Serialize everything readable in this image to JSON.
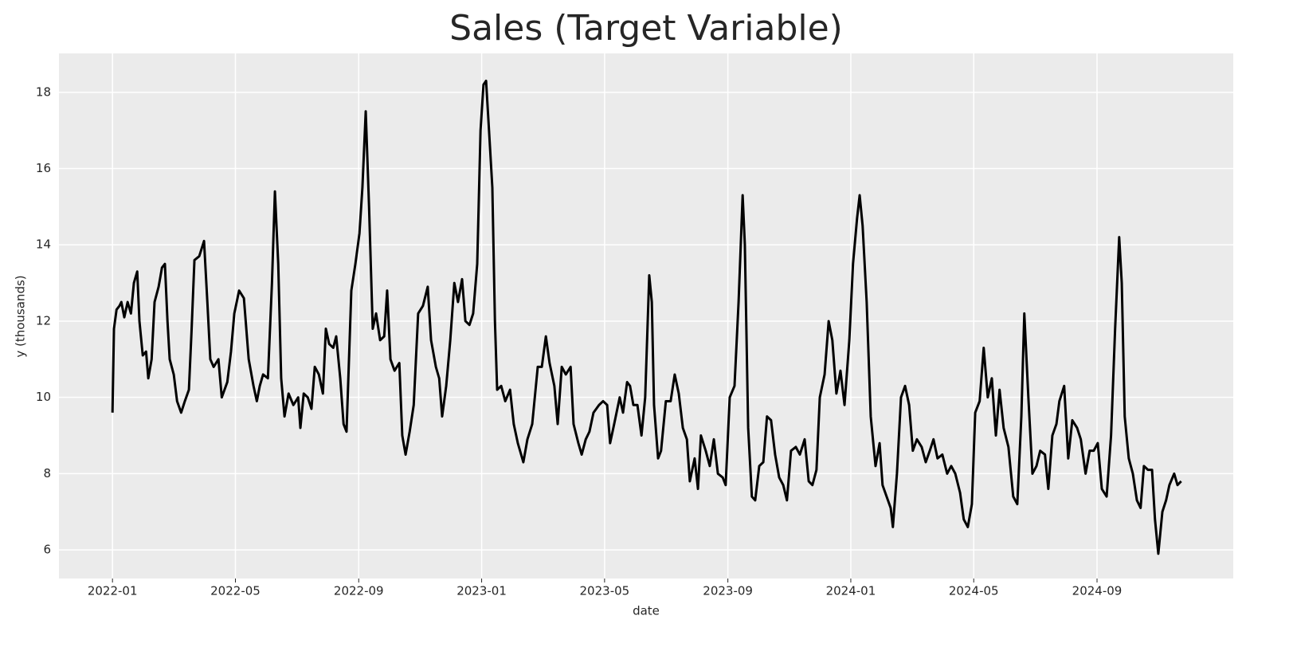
{
  "chart_data": {
    "type": "line",
    "title": "Sales (Target Variable)",
    "x_label": "date",
    "y_label": "y (thousands)",
    "xlim": [
      2021.855,
      2025.036
    ],
    "ylim": [
      5.25,
      19.02
    ],
    "xticks": [
      {
        "value": 2022,
        "label": "2022-01"
      },
      {
        "value": 2022.333,
        "label": "2022-05"
      },
      {
        "value": 2022.667,
        "label": "2022-09"
      },
      {
        "value": 2023,
        "label": "2023-01"
      },
      {
        "value": 2023.333,
        "label": "2023-05"
      },
      {
        "value": 2023.667,
        "label": "2023-09"
      },
      {
        "value": 2024,
        "label": "2024-01"
      },
      {
        "value": 2024.333,
        "label": "2024-05"
      },
      {
        "value": 2024.667,
        "label": "2024-09"
      }
    ],
    "yticks": [
      6,
      8,
      10,
      12,
      14,
      16,
      18
    ],
    "grid": true,
    "color": "#000000",
    "x": [
      2022.0,
      2022.004,
      2022.011,
      2022.019,
      2022.024,
      2022.032,
      2022.041,
      2022.05,
      2022.058,
      2022.067,
      2022.073,
      2022.082,
      2022.091,
      2022.097,
      2022.106,
      2022.114,
      2022.125,
      2022.134,
      2022.142,
      2022.149,
      2022.155,
      2022.166,
      2022.175,
      2022.186,
      2022.196,
      2022.207,
      2022.214,
      2022.222,
      2022.235,
      2022.248,
      2022.257,
      2022.265,
      2022.274,
      2022.287,
      2022.296,
      2022.311,
      2022.321,
      2022.33,
      2022.343,
      2022.356,
      2022.369,
      2022.382,
      2022.391,
      2022.399,
      2022.408,
      2022.421,
      2022.432,
      2022.44,
      2022.449,
      2022.457,
      2022.466,
      2022.477,
      2022.49,
      2022.503,
      2022.509,
      2022.518,
      2022.529,
      2022.539,
      2022.548,
      2022.559,
      2022.57,
      2022.578,
      2022.587,
      2022.598,
      2022.606,
      2022.617,
      2022.626,
      2022.634,
      2022.647,
      2022.658,
      2022.669,
      2022.677,
      2022.686,
      2022.695,
      2022.705,
      2022.714,
      2022.725,
      2022.736,
      2022.744,
      2022.753,
      2022.764,
      2022.777,
      2022.785,
      2022.794,
      2022.805,
      2022.816,
      2022.828,
      2022.841,
      2022.854,
      2022.863,
      2022.876,
      2022.885,
      2022.893,
      2022.904,
      2022.915,
      2022.926,
      2022.936,
      2022.947,
      2022.956,
      2022.967,
      2022.977,
      2022.988,
      2022.997,
      2023.005,
      2023.012,
      2023.02,
      2023.029,
      2023.036,
      2023.042,
      2023.053,
      2023.064,
      2023.077,
      2023.087,
      2023.098,
      2023.113,
      2023.124,
      2023.137,
      2023.152,
      2023.163,
      2023.174,
      2023.184,
      2023.197,
      2023.206,
      2023.217,
      2023.228,
      2023.241,
      2023.249,
      2023.262,
      2023.271,
      2023.282,
      2023.292,
      2023.303,
      2023.318,
      2023.329,
      2023.34,
      2023.348,
      2023.359,
      2023.374,
      2023.383,
      2023.394,
      2023.402,
      2023.411,
      2023.422,
      2023.433,
      2023.443,
      2023.454,
      2023.461,
      2023.467,
      2023.478,
      2023.486,
      2023.499,
      2023.512,
      2023.523,
      2023.534,
      2023.545,
      2023.556,
      2023.564,
      2023.577,
      2023.586,
      2023.594,
      2023.607,
      2023.618,
      2023.629,
      2023.64,
      2023.653,
      2023.661,
      2023.672,
      2023.685,
      2023.696,
      2023.707,
      2023.713,
      2023.722,
      2023.732,
      2023.741,
      2023.752,
      2023.763,
      2023.773,
      2023.784,
      2023.795,
      2023.806,
      2023.817,
      2023.827,
      2023.838,
      2023.851,
      2023.862,
      2023.875,
      2023.886,
      2023.896,
      2023.907,
      2023.916,
      2023.929,
      2023.94,
      2023.95,
      2023.961,
      2023.972,
      2023.983,
      2023.996,
      2024.006,
      2024.017,
      2024.024,
      2024.032,
      2024.043,
      2024.054,
      2024.067,
      2024.078,
      2024.086,
      2024.097,
      2024.108,
      2024.114,
      2024.125,
      2024.136,
      2024.147,
      2024.158,
      2024.168,
      2024.179,
      2024.192,
      2024.203,
      2024.214,
      2024.224,
      2024.235,
      2024.248,
      2024.261,
      2024.272,
      2024.283,
      2024.296,
      2024.306,
      2024.317,
      2024.328,
      2024.337,
      2024.349,
      2024.36,
      2024.371,
      2024.382,
      2024.393,
      2024.403,
      2024.414,
      2024.427,
      2024.44,
      2024.451,
      2024.462,
      2024.47,
      2024.481,
      2024.492,
      2024.503,
      2024.513,
      2024.526,
      2024.535,
      2024.546,
      2024.557,
      2024.565,
      2024.578,
      2024.589,
      2024.6,
      2024.613,
      2024.623,
      2024.636,
      2024.647,
      2024.658,
      2024.669,
      2024.68,
      2024.693,
      2024.705,
      2024.716,
      2024.727,
      2024.734,
      2024.742,
      2024.753,
      2024.764,
      2024.775,
      2024.785,
      2024.794,
      2024.805,
      2024.816,
      2024.824,
      2024.833,
      2024.844,
      2024.854,
      2024.863,
      2024.876,
      2024.885,
      2024.895
    ],
    "values": [
      9.6,
      11.8,
      12.3,
      12.4,
      12.5,
      12.1,
      12.5,
      12.2,
      13.0,
      13.3,
      12.0,
      11.1,
      11.2,
      10.5,
      11.0,
      12.5,
      12.9,
      13.4,
      13.5,
      12.0,
      11.0,
      10.6,
      9.9,
      9.6,
      9.9,
      10.2,
      11.7,
      13.6,
      13.7,
      14.1,
      12.5,
      11.0,
      10.8,
      11.0,
      10.0,
      10.4,
      11.2,
      12.2,
      12.8,
      12.6,
      11.0,
      10.3,
      9.9,
      10.3,
      10.6,
      10.5,
      13.0,
      15.4,
      13.5,
      10.5,
      9.5,
      10.1,
      9.8,
      10.0,
      9.2,
      10.1,
      10.0,
      9.7,
      10.8,
      10.6,
      10.1,
      11.8,
      11.4,
      11.3,
      11.6,
      10.5,
      9.3,
      9.1,
      12.8,
      13.5,
      14.3,
      15.5,
      17.5,
      15.0,
      11.8,
      12.2,
      11.5,
      11.6,
      12.8,
      11.0,
      10.7,
      10.9,
      9.0,
      8.5,
      9.1,
      9.8,
      12.2,
      12.4,
      12.9,
      11.5,
      10.8,
      10.5,
      9.5,
      10.3,
      11.5,
      13.0,
      12.5,
      13.1,
      12.0,
      11.9,
      12.2,
      13.5,
      17.0,
      18.2,
      18.3,
      17.0,
      15.5,
      12.0,
      10.2,
      10.3,
      9.9,
      10.2,
      9.3,
      8.8,
      8.3,
      8.9,
      9.3,
      10.8,
      10.8,
      11.6,
      10.9,
      10.3,
      9.3,
      10.8,
      10.6,
      10.8,
      9.3,
      8.8,
      8.5,
      8.9,
      9.1,
      9.6,
      9.8,
      9.9,
      9.8,
      8.8,
      9.3,
      10.0,
      9.6,
      10.4,
      10.3,
      9.8,
      9.8,
      9.0,
      10.0,
      13.2,
      12.5,
      9.8,
      8.4,
      8.6,
      9.9,
      9.9,
      10.6,
      10.1,
      9.2,
      8.9,
      7.8,
      8.4,
      7.6,
      9.0,
      8.6,
      8.2,
      8.9,
      8.0,
      7.9,
      7.7,
      10.0,
      10.3,
      12.5,
      15.3,
      14.0,
      9.2,
      7.4,
      7.3,
      8.2,
      8.3,
      9.5,
      9.4,
      8.5,
      7.9,
      7.7,
      7.3,
      8.6,
      8.7,
      8.5,
      8.9,
      7.8,
      7.7,
      8.1,
      10.0,
      10.6,
      12.0,
      11.5,
      10.1,
      10.7,
      9.8,
      11.5,
      13.5,
      14.7,
      15.3,
      14.5,
      12.5,
      9.5,
      8.2,
      8.8,
      7.7,
      7.4,
      7.1,
      6.6,
      8.0,
      10.0,
      10.3,
      9.8,
      8.6,
      8.9,
      8.7,
      8.3,
      8.6,
      8.9,
      8.4,
      8.5,
      8.0,
      8.2,
      8.0,
      7.5,
      6.8,
      6.6,
      7.2,
      9.6,
      9.9,
      11.3,
      10.0,
      10.5,
      9.0,
      10.2,
      9.2,
      8.7,
      7.4,
      7.2,
      9.5,
      12.2,
      10.0,
      8.0,
      8.2,
      8.6,
      8.5,
      7.6,
      9.0,
      9.3,
      9.9,
      10.3,
      8.4,
      9.4,
      9.2,
      8.9,
      8.0,
      8.6,
      8.6,
      8.8,
      7.6,
      7.4,
      9.0,
      11.8,
      14.2,
      13.0,
      9.5,
      8.4,
      8.0,
      7.3,
      7.1,
      8.2,
      8.1,
      8.1,
      6.8,
      5.9,
      7.0,
      7.3,
      7.7,
      8.0,
      7.7,
      7.8
    ]
  }
}
